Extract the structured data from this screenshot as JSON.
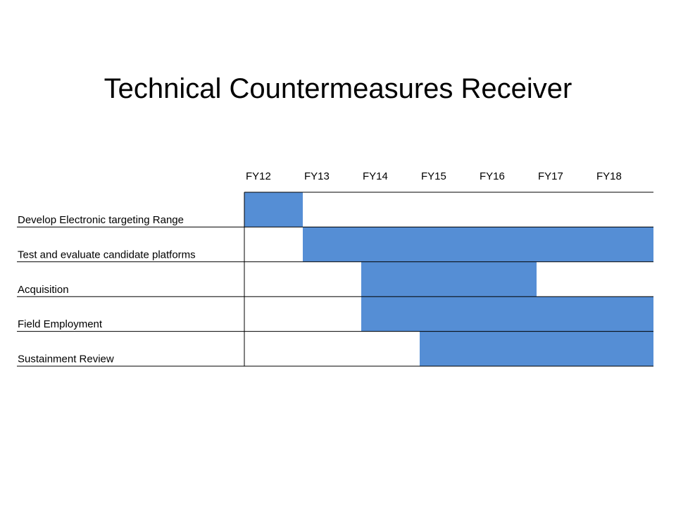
{
  "title": "Technical Countermeasures Receiver",
  "colors": {
    "bar": "#558ed5",
    "line": "#000000",
    "text": "#000000",
    "background": "#ffffff"
  },
  "chart_data": {
    "type": "gantt",
    "title": "Technical Countermeasures Receiver",
    "periods": [
      "FY12",
      "FY13",
      "FY14",
      "FY15",
      "FY16",
      "FY17",
      "FY18"
    ],
    "tasks": [
      {
        "label": "Develop Electronic targeting Range",
        "start": "FY12",
        "end": "FY12"
      },
      {
        "label": "Test and evaluate candidate platforms",
        "start": "FY13",
        "end": "FY18"
      },
      {
        "label": "Acquisition",
        "start": "FY14",
        "end": "FY16"
      },
      {
        "label": "Field Employment",
        "start": "FY14",
        "end": "FY18"
      },
      {
        "label": "Sustainment Review",
        "start": "FY15",
        "end": "FY18"
      }
    ],
    "grid": "horizontal row lines",
    "legend": "none"
  }
}
